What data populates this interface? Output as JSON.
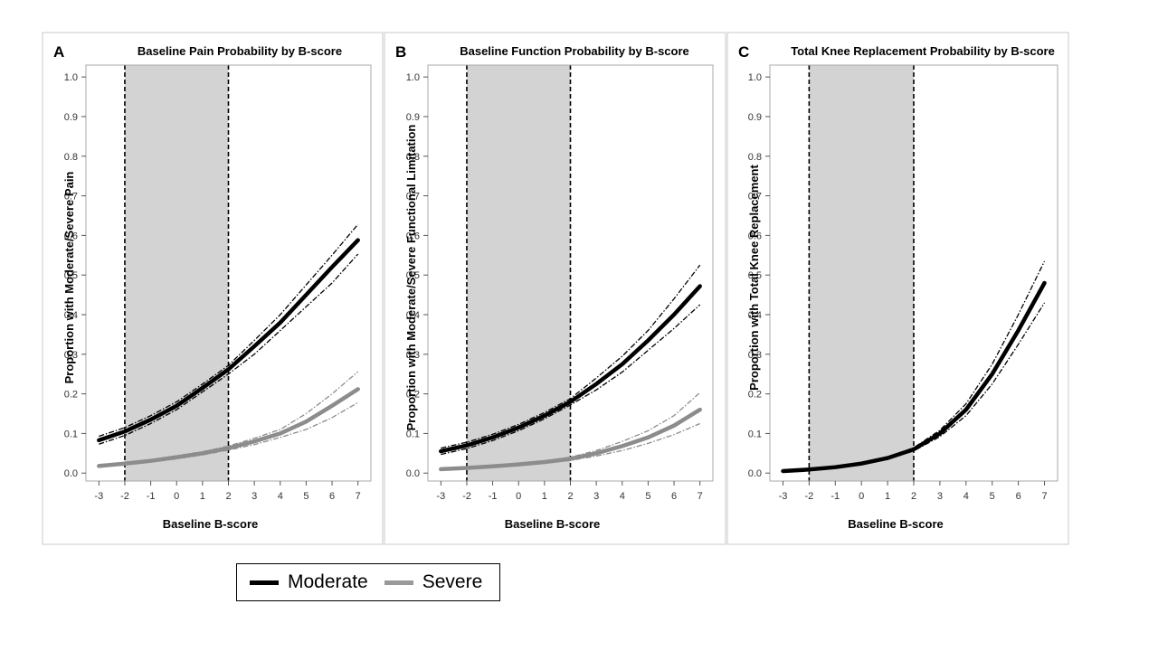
{
  "chart_data": [
    {
      "type": "line",
      "letter": "A",
      "title": "Baseline Pain Probability by B-score",
      "xlabel": "Baseline B-score",
      "ylabel": "Proportion with Moderate/Severe Pain",
      "xlim": [
        -3.5,
        7.5
      ],
      "ylim": [
        -0.02,
        1.03
      ],
      "xticks": [
        -3,
        -2,
        -1,
        0,
        1,
        2,
        3,
        4,
        5,
        6,
        7
      ],
      "yticks": [
        0.0,
        0.1,
        0.2,
        0.3,
        0.4,
        0.5,
        0.6,
        0.7,
        0.8,
        0.9,
        1.0
      ],
      "shaded_band": [
        -2,
        2
      ],
      "reference_lines": [
        -2,
        2
      ],
      "grid": false,
      "x": [
        -3,
        -2,
        -1,
        0,
        1,
        2,
        3,
        4,
        5,
        6,
        7
      ],
      "series": [
        {
          "name": "Moderate",
          "values": [
            0.083,
            0.105,
            0.135,
            0.17,
            0.215,
            0.262,
            0.32,
            0.38,
            0.45,
            0.52,
            0.588
          ],
          "lower": [
            0.073,
            0.095,
            0.125,
            0.16,
            0.205,
            0.25,
            0.3,
            0.36,
            0.42,
            0.48,
            0.553
          ],
          "upper": [
            0.093,
            0.115,
            0.145,
            0.18,
            0.225,
            0.272,
            0.335,
            0.4,
            0.475,
            0.55,
            0.628
          ]
        },
        {
          "name": "Severe",
          "values": [
            0.018,
            0.024,
            0.031,
            0.04,
            0.05,
            0.063,
            0.08,
            0.1,
            0.13,
            0.17,
            0.212
          ],
          "lower": [
            0.015,
            0.021,
            0.028,
            0.036,
            0.046,
            0.058,
            0.072,
            0.09,
            0.11,
            0.14,
            0.178
          ],
          "upper": [
            0.021,
            0.027,
            0.034,
            0.044,
            0.054,
            0.068,
            0.088,
            0.11,
            0.15,
            0.2,
            0.256
          ]
        }
      ]
    },
    {
      "type": "line",
      "letter": "B",
      "title": "Baseline Function Probability by B-score",
      "xlabel": "Baseline B-score",
      "ylabel": "Proportion with Moderate/Severe Functional Limitation",
      "xlim": [
        -3.5,
        7.5
      ],
      "ylim": [
        -0.02,
        1.03
      ],
      "xticks": [
        -3,
        -2,
        -1,
        0,
        1,
        2,
        3,
        4,
        5,
        6,
        7
      ],
      "yticks": [
        0.0,
        0.1,
        0.2,
        0.3,
        0.4,
        0.5,
        0.6,
        0.7,
        0.8,
        0.9,
        1.0
      ],
      "shaded_band": [
        -2,
        2
      ],
      "reference_lines": [
        -2,
        2
      ],
      "grid": false,
      "x": [
        -3,
        -2,
        -1,
        0,
        1,
        2,
        3,
        4,
        5,
        6,
        7
      ],
      "series": [
        {
          "name": "Moderate",
          "values": [
            0.055,
            0.07,
            0.09,
            0.115,
            0.145,
            0.18,
            0.225,
            0.275,
            0.335,
            0.4,
            0.472
          ],
          "lower": [
            0.047,
            0.062,
            0.082,
            0.107,
            0.137,
            0.172,
            0.21,
            0.255,
            0.31,
            0.365,
            0.425
          ],
          "upper": [
            0.063,
            0.078,
            0.098,
            0.123,
            0.153,
            0.188,
            0.24,
            0.295,
            0.36,
            0.44,
            0.525
          ]
        },
        {
          "name": "Severe",
          "values": [
            0.01,
            0.013,
            0.017,
            0.022,
            0.028,
            0.036,
            0.05,
            0.068,
            0.09,
            0.12,
            0.16
          ],
          "lower": [
            0.008,
            0.011,
            0.015,
            0.019,
            0.025,
            0.032,
            0.043,
            0.057,
            0.075,
            0.097,
            0.125
          ],
          "upper": [
            0.012,
            0.015,
            0.019,
            0.025,
            0.031,
            0.04,
            0.057,
            0.08,
            0.107,
            0.145,
            0.203
          ]
        }
      ]
    },
    {
      "type": "line",
      "letter": "C",
      "title": "Total Knee Replacement Probability by B-score",
      "xlabel": "Baseline B-score",
      "ylabel": "Proportion with Total Knee Replacement",
      "xlim": [
        -3.5,
        7.5
      ],
      "ylim": [
        -0.02,
        1.03
      ],
      "xticks": [
        -3,
        -2,
        -1,
        0,
        1,
        2,
        3,
        4,
        5,
        6,
        7
      ],
      "yticks": [
        0.0,
        0.1,
        0.2,
        0.3,
        0.4,
        0.5,
        0.6,
        0.7,
        0.8,
        0.9,
        1.0
      ],
      "shaded_band": [
        -2,
        2
      ],
      "reference_lines": [
        -2,
        2
      ],
      "grid": false,
      "x": [
        -3,
        -2,
        -1,
        0,
        1,
        2,
        3,
        4,
        5,
        6,
        7
      ],
      "series": [
        {
          "name": "",
          "values": [
            0.005,
            0.009,
            0.015,
            0.024,
            0.038,
            0.06,
            0.1,
            0.16,
            0.25,
            0.36,
            0.48
          ],
          "lower": [
            0.004,
            0.008,
            0.014,
            0.022,
            0.035,
            0.056,
            0.092,
            0.145,
            0.225,
            0.325,
            0.43
          ],
          "upper": [
            0.006,
            0.01,
            0.016,
            0.026,
            0.041,
            0.064,
            0.108,
            0.175,
            0.275,
            0.4,
            0.535
          ]
        }
      ]
    }
  ],
  "series_colors": {
    "Moderate": "#000000",
    "Severe": "#8c8c8c"
  },
  "legend": {
    "placement": "bottom-left",
    "items": [
      {
        "label": "Moderate",
        "color": "#000000"
      },
      {
        "label": "Severe",
        "color": "#999999"
      }
    ]
  }
}
